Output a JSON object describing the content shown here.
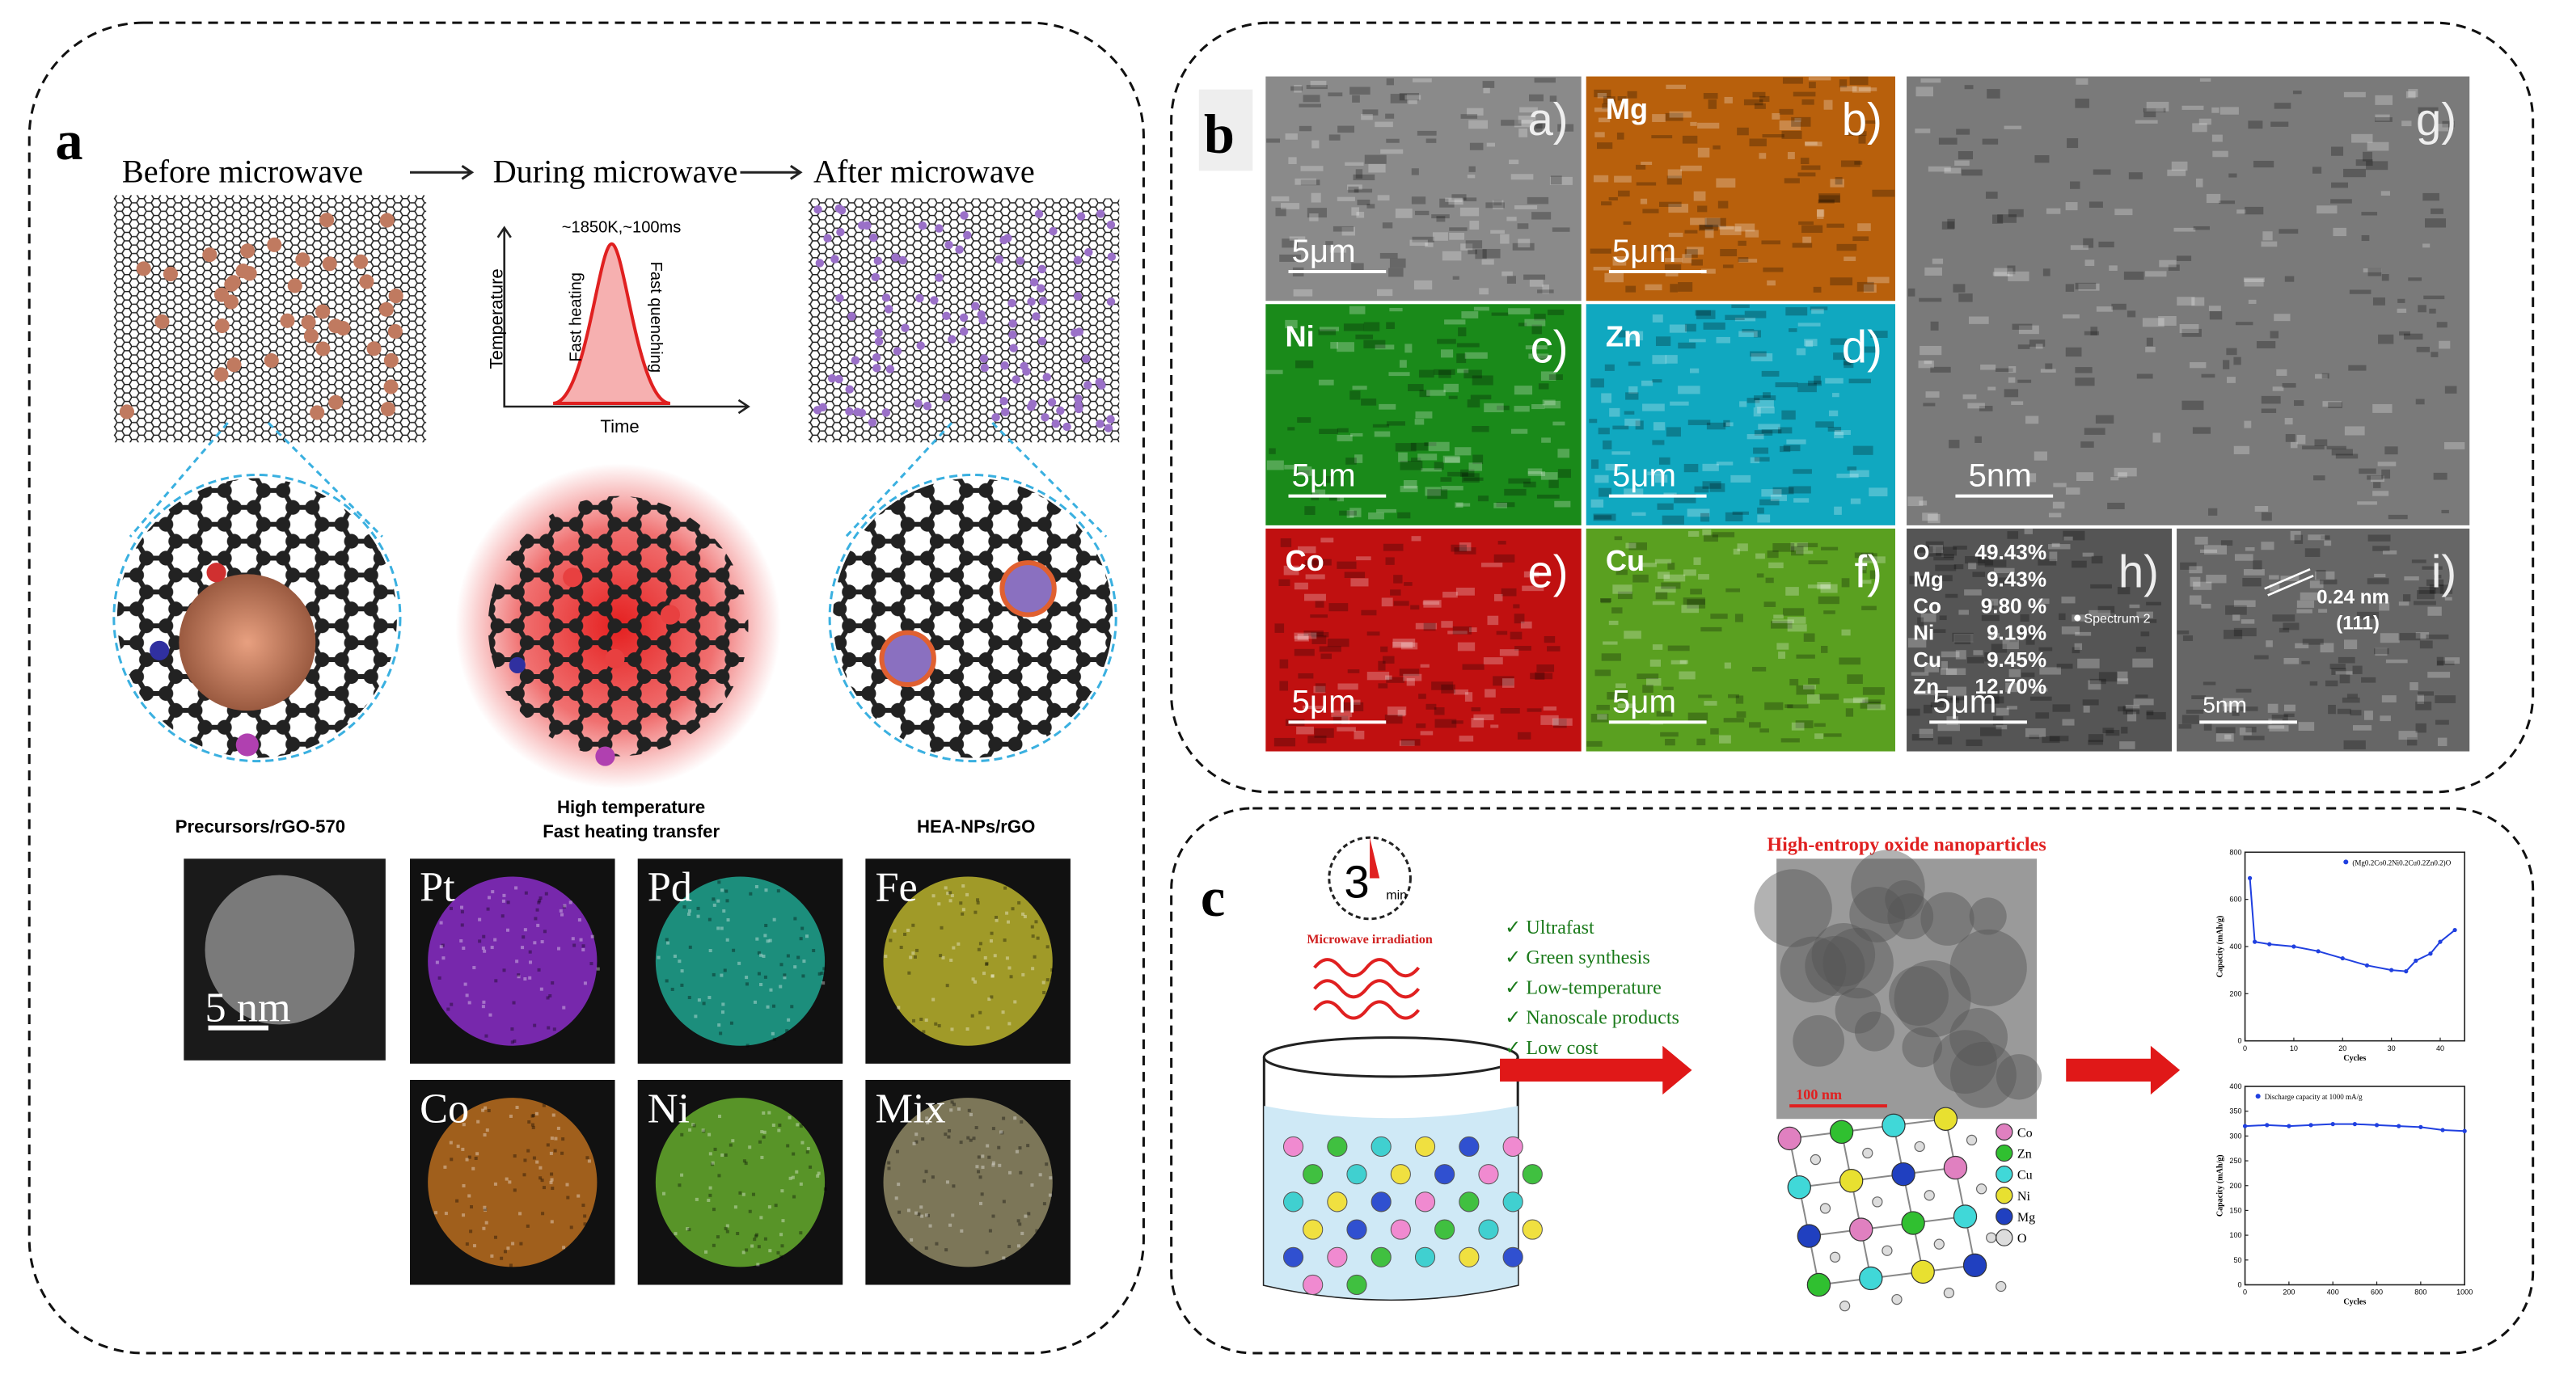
{
  "panel_a": {
    "label": "a",
    "steps": [
      "Before microwave",
      "During microwave",
      "After microwave"
    ],
    "plot": {
      "annotation": "~1850K,~100ms",
      "y_label": "Temperature",
      "x_label": "Time",
      "heating": "Fast heating",
      "quenching": "Fast quenching"
    },
    "captions": [
      "Precursors/rGO-570",
      "High temperature",
      "Fast heating transfer",
      "HEA-NPs/rGO"
    ],
    "maps": {
      "scale": "5 nm",
      "elements": [
        "Pt",
        "Pd",
        "Fe",
        "Co",
        "Ni",
        "Mix"
      ]
    }
  },
  "panel_b": {
    "label": "b",
    "tags": [
      "a)",
      "b)",
      "c)",
      "d)",
      "e)",
      "f)",
      "g)",
      "h)",
      "i)"
    ],
    "elements": [
      "Mg",
      "Ni",
      "Zn",
      "Co",
      "Cu"
    ],
    "scale_bars": [
      "5μm",
      "5nm"
    ],
    "composition": [
      [
        "O",
        "49.43%"
      ],
      [
        "Mg",
        "9.43%"
      ],
      [
        "Co",
        "9.80 %"
      ],
      [
        "Ni",
        "9.19%"
      ],
      [
        "Cu",
        "9.45%"
      ],
      [
        "Zn",
        "12.70%"
      ]
    ],
    "spectrum": "Spectrum 2",
    "lattice": "0.24 nm",
    "plane": "(111)"
  },
  "panel_c": {
    "label": "c",
    "clock": [
      "3",
      "min"
    ],
    "irradiation": "Microwave irradiation",
    "benefits": [
      "✓ Ultrafast",
      "✓ Green synthesis",
      "✓ Low-temperature",
      "✓ Nanoscale products",
      "✓ Low cost"
    ],
    "title": "High-entropy oxide nanoparticles",
    "scale": "100 nm",
    "atoms": [
      "Co",
      "Zn",
      "Cu",
      "Ni",
      "Mg",
      "O"
    ],
    "charts": [
      {
        "type": "line",
        "legend": "(Mg0.2Co0.2Ni0.2Cu0.2Zn0.2)O",
        "y_label": "Capacity (mAh/g)",
        "x_label": "Cycles",
        "x": [
          1,
          2,
          5,
          10,
          15,
          20,
          25,
          30,
          33,
          35,
          38,
          40,
          43
        ],
        "values": [
          690,
          420,
          410,
          400,
          380,
          350,
          320,
          300,
          295,
          340,
          370,
          420,
          470
        ],
        "xlim": [
          0,
          45
        ],
        "ylim": [
          0,
          800
        ],
        "xticks": [
          0,
          10,
          20,
          30,
          40
        ],
        "yticks": [
          0,
          200,
          400,
          600,
          800
        ]
      },
      {
        "type": "line",
        "legend": "Discharge capacity at 1000 mA/g",
        "y_label": "Capacity (mAh/g)",
        "x_label": "Cycles",
        "x": [
          0,
          100,
          200,
          300,
          400,
          500,
          600,
          700,
          800,
          900,
          1000
        ],
        "values": [
          320,
          322,
          320,
          322,
          324,
          324,
          322,
          320,
          318,
          312,
          310
        ],
        "xlim": [
          0,
          1000
        ],
        "ylim": [
          0,
          400
        ],
        "xticks": [
          0,
          200,
          400,
          600,
          800,
          1000
        ],
        "yticks": [
          0,
          50,
          100,
          150,
          200,
          250,
          300,
          350,
          400
        ]
      }
    ]
  }
}
